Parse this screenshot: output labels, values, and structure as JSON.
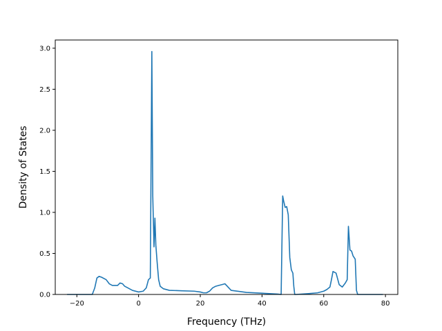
{
  "chart_data": {
    "type": "line",
    "title": "",
    "xlabel": "Frequency (THz)",
    "ylabel": "Density of States",
    "xlim": [
      -27,
      84
    ],
    "ylim": [
      0,
      3.1
    ],
    "xticks": [
      -20,
      0,
      20,
      40,
      60,
      80
    ],
    "xtick_labels": [
      "−20",
      "0",
      "20",
      "40",
      "60",
      "80"
    ],
    "yticks": [
      0.0,
      0.5,
      1.0,
      1.5,
      2.0,
      2.5,
      3.0
    ],
    "ytick_labels": [
      "0.0",
      "0.5",
      "1.0",
      "1.5",
      "2.0",
      "2.5",
      "3.0"
    ],
    "grid": false,
    "legend": "none",
    "series": [
      {
        "color": "#1f77b4",
        "x": [
          -23,
          -20,
          -17,
          -15,
          -14.2,
          -13.5,
          -12.8,
          -12,
          -10.5,
          -9.5,
          -8.5,
          -7.5,
          -6.8,
          -6,
          -5.2,
          -4.5,
          -3.5,
          -2,
          0,
          1.5,
          2.5,
          3.2,
          3.8,
          4.3,
          4.6,
          5.0,
          5.3,
          5.6,
          6.0,
          6.5,
          7.0,
          8.0,
          10,
          14,
          18,
          20,
          21,
          22,
          23,
          24,
          25,
          26,
          27,
          28,
          29,
          30,
          35,
          40,
          45,
          46.2,
          46.7,
          47.0,
          47.5,
          48.0,
          48.5,
          49.0,
          49.5,
          50.0,
          50.3,
          50.6,
          51,
          55,
          58,
          60,
          61,
          62,
          62.5,
          63,
          64,
          65,
          66,
          67,
          67.6,
          68.0,
          68.5,
          69.0,
          69.5,
          70.2,
          70.6,
          71,
          73,
          75,
          77,
          79
        ],
        "y": [
          0.0,
          0.0,
          0.0,
          0.0,
          0.08,
          0.2,
          0.22,
          0.21,
          0.18,
          0.13,
          0.11,
          0.11,
          0.11,
          0.14,
          0.13,
          0.1,
          0.08,
          0.05,
          0.03,
          0.04,
          0.08,
          0.18,
          0.2,
          2.96,
          1.2,
          0.58,
          0.93,
          0.6,
          0.4,
          0.18,
          0.1,
          0.07,
          0.05,
          0.045,
          0.04,
          0.03,
          0.02,
          0.02,
          0.04,
          0.08,
          0.1,
          0.11,
          0.12,
          0.13,
          0.09,
          0.05,
          0.025,
          0.015,
          0.005,
          0.0,
          1.2,
          1.14,
          1.06,
          1.07,
          0.97,
          0.45,
          0.3,
          0.26,
          0.1,
          0.0,
          0.0,
          0.01,
          0.02,
          0.04,
          0.06,
          0.09,
          0.18,
          0.28,
          0.26,
          0.12,
          0.09,
          0.14,
          0.18,
          0.83,
          0.54,
          0.53,
          0.47,
          0.43,
          0.05,
          0.0,
          0.0,
          0.0,
          0.0,
          0.0
        ]
      }
    ]
  }
}
